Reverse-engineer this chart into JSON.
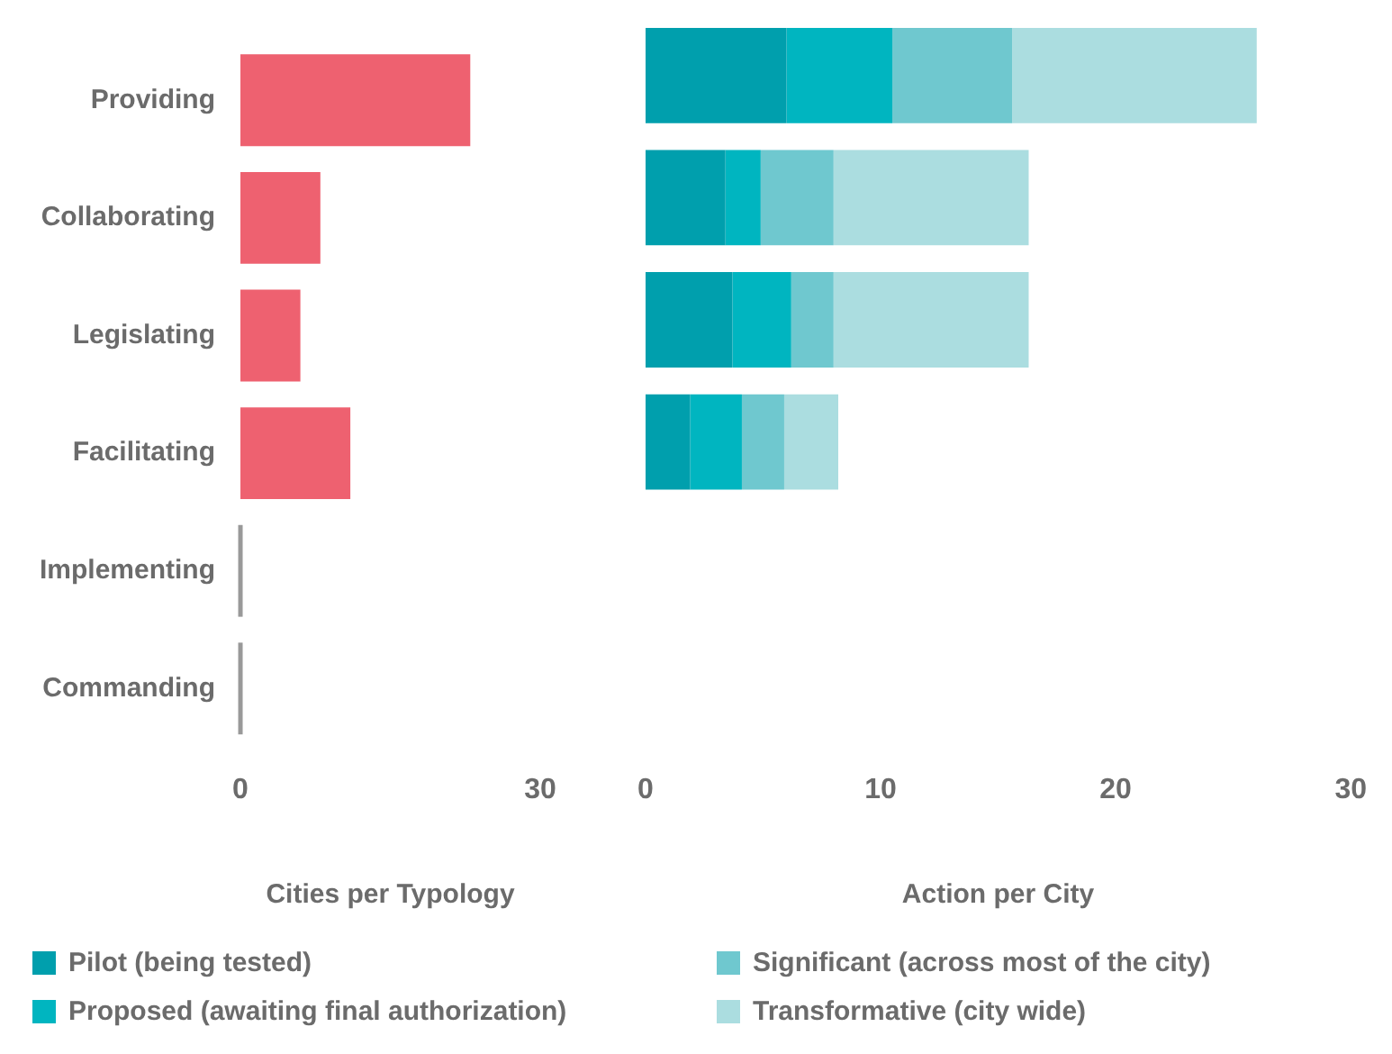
{
  "chart_data": [
    {
      "type": "bar",
      "orientation": "horizontal",
      "categories": [
        "Providing",
        "Collaborating",
        "Legislating",
        "Facilitating",
        "Implementing",
        "Commanding"
      ],
      "values": [
        23,
        8,
        6,
        11,
        0,
        0
      ],
      "color": "#ee6170",
      "xlim": [
        0,
        30
      ],
      "xticks": [
        0,
        30
      ],
      "xlabel": "Cities per Typology",
      "grid": false
    },
    {
      "type": "bar",
      "orientation": "horizontal",
      "stacked": true,
      "categories": [
        null,
        null,
        null,
        null,
        null,
        null
      ],
      "xlim": [
        0,
        30
      ],
      "xticks": [
        0,
        10,
        20,
        30
      ],
      "xlabel": "Action per City",
      "grid": false,
      "tick_labels": "x",
      "legend": "bottom",
      "series": [
        {
          "name": "Pilot (being tested)",
          "color": "#009fad",
          "values": [
            6.0,
            3.4,
            3.7,
            1.9,
            0,
            0
          ]
        },
        {
          "name": "Proposed (awaiting final authorization)",
          "color": "#00b5c0",
          "values": [
            4.5,
            1.5,
            2.5,
            2.2,
            0,
            0
          ]
        },
        {
          "name": "Significant (across most of the city)",
          "color": "#6fc8cf",
          "values": [
            5.1,
            3.1,
            1.8,
            1.8,
            0,
            0
          ]
        },
        {
          "name": "Transformative (city wide)",
          "color": "#abdde0",
          "values": [
            10.4,
            8.3,
            8.3,
            2.3,
            0,
            0
          ]
        }
      ]
    }
  ]
}
